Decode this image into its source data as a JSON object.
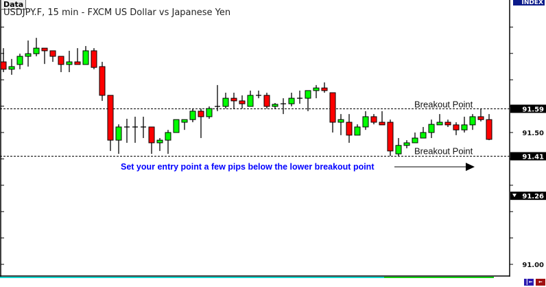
{
  "header": {
    "data_tab": "Data",
    "title": "USDJPY.F, 15 min - FXCM US Dollar vs Japanese Yen",
    "index_label": "INDEX"
  },
  "chart_data": {
    "type": "candlestick",
    "title": "USDJPY.F, 15 min - FXCM US Dollar vs Japanese Yen",
    "ylim": [
      91.0,
      92.0
    ],
    "y_ticks": [
      91.0,
      91.1,
      91.2,
      91.3,
      91.4,
      91.5,
      91.6,
      91.7,
      91.8,
      91.9
    ],
    "y_tick_labels": [
      {
        "value": 91.5,
        "label": "91.50"
      },
      {
        "value": 91.0,
        "label": "91.00"
      }
    ],
    "price_markers": [
      {
        "value": 91.59,
        "label": "91.59"
      },
      {
        "value": 91.41,
        "label": "91.41"
      },
      {
        "value": 91.26,
        "label": "91.26",
        "icon": "triangle-down-icon"
      }
    ],
    "up_color": "#00ff00",
    "down_color": "#ff0000",
    "ohlc": [
      [
        91.768,
        91.82,
        91.729,
        91.74
      ],
      [
        91.74,
        91.779,
        91.719,
        91.75
      ],
      [
        91.758,
        91.799,
        91.74,
        91.789
      ],
      [
        91.789,
        91.849,
        91.75,
        91.799
      ],
      [
        91.799,
        91.859,
        91.789,
        91.82
      ],
      [
        91.82,
        91.82,
        91.76,
        91.81
      ],
      [
        91.81,
        91.81,
        91.768,
        91.789
      ],
      [
        91.789,
        91.789,
        91.729,
        91.758
      ],
      [
        91.758,
        91.81,
        91.729,
        91.768
      ],
      [
        91.768,
        91.82,
        91.758,
        91.758
      ],
      [
        91.758,
        91.828,
        91.758,
        91.81
      ],
      [
        91.81,
        91.82,
        91.74,
        91.747
      ],
      [
        91.75,
        91.768,
        91.62,
        91.641
      ],
      [
        91.641,
        91.641,
        91.43,
        91.471
      ],
      [
        91.471,
        91.531,
        91.419,
        91.521
      ],
      [
        91.521,
        91.552,
        91.461,
        91.521
      ],
      [
        91.521,
        91.56,
        91.461,
        91.521
      ],
      [
        91.521,
        91.56,
        91.479,
        91.521
      ],
      [
        91.521,
        91.521,
        91.419,
        91.461
      ],
      [
        91.461,
        91.479,
        91.43,
        91.471
      ],
      [
        91.471,
        91.51,
        91.419,
        91.5
      ],
      [
        91.5,
        91.549,
        91.5,
        91.549
      ],
      [
        91.539,
        91.549,
        91.51,
        91.549
      ],
      [
        91.549,
        91.591,
        91.539,
        91.581
      ],
      [
        91.581,
        91.591,
        91.479,
        91.56
      ],
      [
        91.56,
        91.599,
        91.552,
        91.591
      ],
      [
        91.599,
        91.68,
        91.581,
        91.599
      ],
      [
        91.599,
        91.651,
        91.591,
        91.63
      ],
      [
        91.63,
        91.651,
        91.591,
        91.62
      ],
      [
        91.62,
        91.641,
        91.591,
        91.609
      ],
      [
        91.599,
        91.659,
        91.599,
        91.641
      ],
      [
        91.641,
        91.659,
        91.63,
        91.641
      ],
      [
        91.641,
        91.651,
        91.591,
        91.599
      ],
      [
        91.599,
        91.612,
        91.591,
        91.607
      ],
      [
        91.609,
        91.63,
        91.57,
        91.609
      ],
      [
        91.609,
        91.651,
        91.599,
        91.63
      ],
      [
        91.63,
        91.659,
        91.609,
        91.63
      ],
      [
        91.63,
        91.659,
        91.581,
        91.659
      ],
      [
        91.659,
        91.68,
        91.63,
        91.669
      ],
      [
        91.669,
        91.69,
        91.651,
        91.659
      ],
      [
        91.651,
        91.651,
        91.5,
        91.539
      ],
      [
        91.539,
        91.57,
        91.49,
        91.549
      ],
      [
        91.539,
        91.57,
        91.461,
        91.49
      ],
      [
        91.49,
        91.531,
        91.49,
        91.521
      ],
      [
        91.521,
        91.581,
        91.51,
        91.56
      ],
      [
        91.56,
        91.57,
        91.531,
        91.539
      ],
      [
        91.539,
        91.581,
        91.529,
        91.529
      ],
      [
        91.539,
        91.549,
        91.411,
        91.43
      ],
      [
        91.419,
        91.479,
        91.411,
        91.451
      ],
      [
        91.451,
        91.471,
        91.44,
        91.461
      ],
      [
        91.461,
        91.5,
        91.461,
        91.479
      ],
      [
        91.479,
        91.521,
        91.479,
        91.5
      ],
      [
        91.5,
        91.549,
        91.479,
        91.531
      ],
      [
        91.529,
        91.57,
        91.529,
        91.539
      ],
      [
        91.539,
        91.549,
        91.521,
        91.529
      ],
      [
        91.529,
        91.539,
        91.49,
        91.51
      ],
      [
        91.51,
        91.56,
        91.5,
        91.529
      ],
      [
        91.529,
        91.57,
        91.51,
        91.56
      ],
      [
        91.56,
        91.591,
        91.542,
        91.549
      ],
      [
        91.549,
        91.57,
        91.471,
        91.474
      ]
    ],
    "annotations": {
      "upper_line": 91.59,
      "lower_line": 91.41,
      "upper_label": "Breakout Point",
      "lower_label": "Breakout Point",
      "entry_note": "Set your entry point a few pips below the lower breakout point",
      "note_color": "#0000ff"
    }
  },
  "footer": {
    "scroll_start_icon": "scroll-to-start-icon",
    "scroll_back_icon": "scroll-back-icon",
    "btn1_symbol": "|←",
    "btn2_symbol": "←"
  }
}
